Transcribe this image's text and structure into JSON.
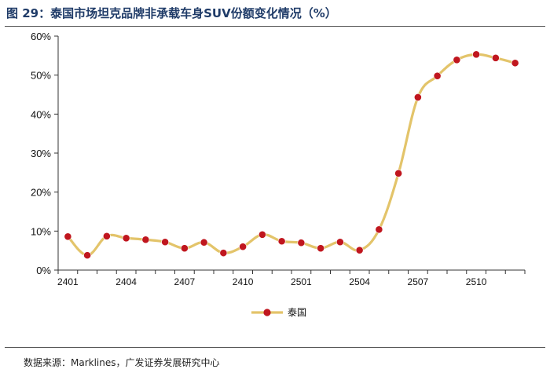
{
  "figure": {
    "title": "图 29：泰国市场坦克品牌非承载车身SUV份额变化情况（%）",
    "source": "数据来源：Marklines，广发证券发展研究中心"
  },
  "chart_data": {
    "type": "line",
    "title": "图 29：泰国市场坦克品牌非承载车身SUV份额变化情况（%）",
    "xlabel": "",
    "ylabel": "",
    "ylim": [
      0,
      60
    ],
    "y_ticks": [
      "0%",
      "10%",
      "20%",
      "30%",
      "40%",
      "50%",
      "60%"
    ],
    "x": [
      "2401",
      "2402",
      "2403",
      "2404",
      "2405",
      "2406",
      "2407",
      "2408",
      "2409",
      "2410",
      "2411",
      "2412",
      "2501",
      "2502",
      "2503",
      "2504",
      "2505",
      "2506",
      "2507",
      "2508",
      "2509",
      "2510",
      "2511",
      "2512"
    ],
    "x_tick_labels": [
      "2401",
      "2404",
      "2407",
      "2410",
      "2501",
      "2504",
      "2507",
      "2510"
    ],
    "series": [
      {
        "name": "泰国",
        "values": [
          8.6,
          3.8,
          8.7,
          8.2,
          7.8,
          7.2,
          5.6,
          7.1,
          4.4,
          6.0,
          9.1,
          7.4,
          7.0,
          5.6,
          7.2,
          5.1,
          10.4,
          24.8,
          44.3,
          49.8,
          53.9,
          55.3,
          54.4,
          53.1
        ],
        "line_color": "#e3c46a",
        "marker_color": "#c0161e"
      }
    ],
    "legend": "bottom-center",
    "grid": false
  }
}
